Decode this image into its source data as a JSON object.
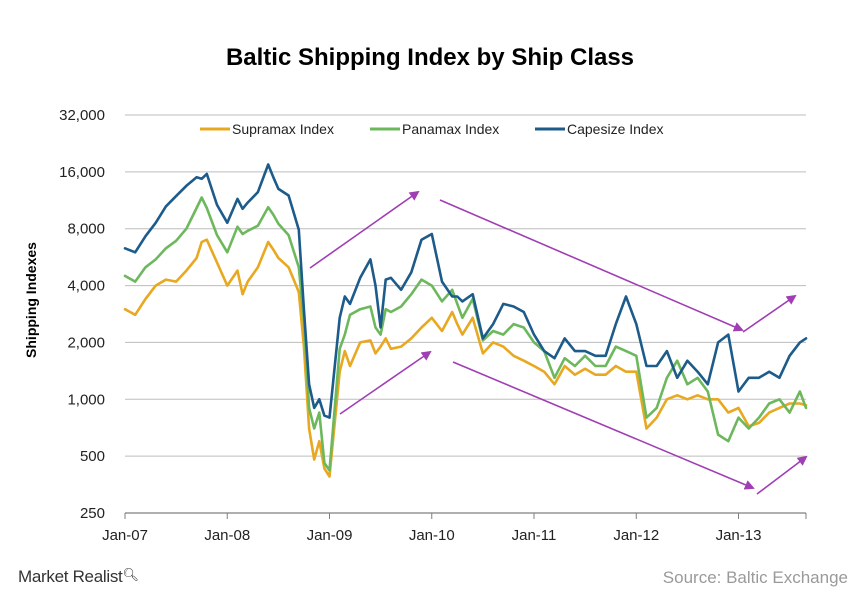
{
  "chart_data": {
    "type": "line",
    "title": "Baltic Shipping Index by Ship Class",
    "ylabel": "Shipping Indexes",
    "xlabel": "",
    "yscale": "log2",
    "ylim": [
      250,
      32000
    ],
    "ytick_values": [
      250,
      500,
      1000,
      2000,
      4000,
      8000,
      16000,
      32000
    ],
    "ytick_labels": [
      "250",
      "500",
      "1,000",
      "2,000",
      "4,000",
      "8,000",
      "16,000",
      "32,000"
    ],
    "xlim": [
      2007.0,
      2013.66
    ],
    "xtick_values": [
      2007,
      2008,
      2009,
      2010,
      2011,
      2012,
      2013
    ],
    "xtick_labels": [
      "Jan-07",
      "Jan-08",
      "Jan-09",
      "Jan-10",
      "Jan-11",
      "Jan-12",
      "Jan-13"
    ],
    "legend_position": "top",
    "grid": "horizontal",
    "x": [
      2007.0,
      2007.1,
      2007.2,
      2007.3,
      2007.4,
      2007.5,
      2007.6,
      2007.7,
      2007.75,
      2007.8,
      2007.9,
      2008.0,
      2008.1,
      2008.15,
      2008.2,
      2008.3,
      2008.4,
      2008.45,
      2008.5,
      2008.6,
      2008.7,
      2008.75,
      2008.8,
      2008.85,
      2008.9,
      2008.95,
      2009.0,
      2009.1,
      2009.15,
      2009.2,
      2009.3,
      2009.4,
      2009.45,
      2009.5,
      2009.55,
      2009.6,
      2009.7,
      2009.8,
      2009.9,
      2010.0,
      2010.1,
      2010.2,
      2010.25,
      2010.3,
      2010.4,
      2010.5,
      2010.6,
      2010.7,
      2010.8,
      2010.9,
      2011.0,
      2011.1,
      2011.2,
      2011.3,
      2011.4,
      2011.5,
      2011.6,
      2011.7,
      2011.8,
      2011.9,
      2012.0,
      2012.1,
      2012.2,
      2012.3,
      2012.4,
      2012.5,
      2012.6,
      2012.7,
      2012.8,
      2012.9,
      2013.0,
      2013.1,
      2013.2,
      2013.3,
      2013.4,
      2013.5,
      2013.6,
      2013.66
    ],
    "series": [
      {
        "name": "Supramax Index",
        "color": "#E8A820",
        "values": [
          3000,
          2800,
          3400,
          4000,
          4300,
          4200,
          4800,
          5600,
          6800,
          7000,
          5300,
          4000,
          4800,
          3600,
          4200,
          5000,
          6800,
          6200,
          5600,
          5000,
          3700,
          1900,
          700,
          480,
          600,
          430,
          390,
          1400,
          1800,
          1500,
          2000,
          2050,
          1750,
          1900,
          2100,
          1850,
          1900,
          2100,
          2400,
          2700,
          2300,
          2900,
          2500,
          2200,
          2700,
          1750,
          2000,
          1900,
          1700,
          1600,
          1500,
          1400,
          1200,
          1500,
          1350,
          1450,
          1350,
          1350,
          1500,
          1400,
          1400,
          700,
          800,
          1000,
          1050,
          1000,
          1050,
          1000,
          1000,
          850,
          900,
          720,
          750,
          850,
          900,
          950,
          950,
          930
        ]
      },
      {
        "name": "Panamax Index",
        "color": "#6DB85C",
        "values": [
          4500,
          4200,
          5000,
          5500,
          6300,
          6900,
          8000,
          10300,
          11700,
          10300,
          7400,
          6000,
          8200,
          7500,
          7800,
          8300,
          10400,
          9500,
          8500,
          7400,
          5000,
          2600,
          900,
          700,
          850,
          460,
          420,
          1850,
          2200,
          2800,
          3000,
          3100,
          2400,
          2200,
          3000,
          2900,
          3100,
          3600,
          4300,
          4000,
          3300,
          3800,
          3200,
          2700,
          3400,
          2050,
          2300,
          2200,
          2500,
          2400,
          2000,
          1800,
          1300,
          1650,
          1500,
          1700,
          1500,
          1500,
          1900,
          1800,
          1700,
          800,
          900,
          1300,
          1600,
          1200,
          1300,
          1100,
          650,
          600,
          800,
          700,
          800,
          950,
          1000,
          850,
          1100,
          900
        ]
      },
      {
        "name": "Capesize Index",
        "color": "#1C5B8A",
        "values": [
          6300,
          6000,
          7300,
          8600,
          10500,
          11900,
          13500,
          15000,
          14700,
          15600,
          10700,
          8600,
          11500,
          10200,
          11000,
          12500,
          17500,
          15000,
          13000,
          12000,
          7900,
          3000,
          1200,
          900,
          1000,
          820,
          800,
          2700,
          3500,
          3200,
          4400,
          5500,
          4000,
          2400,
          4300,
          4400,
          3800,
          4700,
          7000,
          7500,
          4200,
          3500,
          3500,
          3300,
          3600,
          2100,
          2500,
          3200,
          3100,
          2900,
          2200,
          1800,
          1650,
          2100,
          1800,
          1800,
          1700,
          1700,
          2500,
          3500,
          2500,
          1500,
          1500,
          1800,
          1300,
          1600,
          1400,
          1200,
          2000,
          2200,
          1100,
          1300,
          1300,
          1400,
          1300,
          1700,
          2000,
          2100
        ]
      }
    ]
  }
}
